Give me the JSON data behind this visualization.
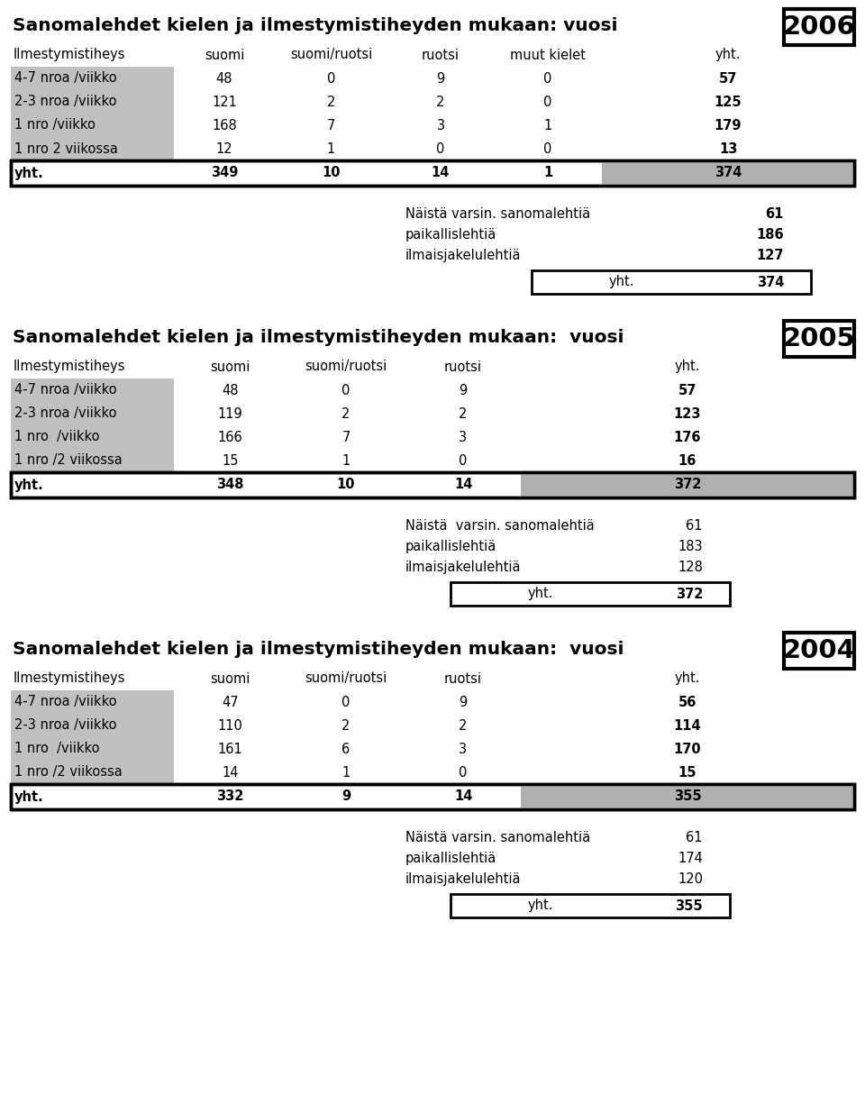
{
  "tables": [
    {
      "year": "2006",
      "title": "Sanomalehdet kielen ja ilmestymistiheyden mukaan: vuosi",
      "header": [
        "Ilmestymistiheys",
        "suomi",
        "suomi/ruotsi",
        "ruotsi",
        "muut kielet",
        "yht."
      ],
      "rows": [
        [
          "4-7 nroa /viikko",
          "48",
          "0",
          "9",
          "0",
          "57"
        ],
        [
          "2-3 nroa /viikko",
          "121",
          "2",
          "2",
          "0",
          "125"
        ],
        [
          "1 nro /viikko",
          "168",
          "7",
          "3",
          "1",
          "179"
        ],
        [
          "1 nro 2 viikossa",
          "12",
          "1",
          "0",
          "0",
          "13"
        ]
      ],
      "total_row": [
        "yht.",
        "349",
        "10",
        "14",
        "1",
        "374"
      ],
      "summary": [
        [
          "Näistä varsin. sanomalehtiä",
          "61"
        ],
        [
          "paikallislehtiä",
          "186"
        ],
        [
          "ilmaisjakelulehtiä",
          "127"
        ]
      ],
      "summary_total": [
        "yht.",
        "374"
      ],
      "has_muut_kielet": true
    },
    {
      "year": "2005",
      "title": "Sanomalehdet kielen ja ilmestymistiheyden mukaan:  vuosi",
      "header": [
        "Ilmestymistiheys",
        "suomi",
        "suomi/ruotsi",
        "ruotsi",
        "yht."
      ],
      "rows": [
        [
          "4-7 nroa /viikko",
          "48",
          "0",
          "9",
          "57"
        ],
        [
          "2-3 nroa /viikko",
          "119",
          "2",
          "2",
          "123"
        ],
        [
          "1 nro  /viikko",
          "166",
          "7",
          "3",
          "176"
        ],
        [
          "1 nro /2 viikossa",
          "15",
          "1",
          "0",
          "16"
        ]
      ],
      "total_row": [
        "yht.",
        "348",
        "10",
        "14",
        "372"
      ],
      "summary": [
        [
          "Näistä  varsin. sanomalehtiä",
          "61"
        ],
        [
          "paikallislehtiä",
          "183"
        ],
        [
          "ilmaisjakelulehtiä",
          "128"
        ]
      ],
      "summary_total": [
        "yht.",
        "372"
      ],
      "has_muut_kielet": false
    },
    {
      "year": "2004",
      "title": "Sanomalehdet kielen ja ilmestymistiheyden mukaan:  vuosi",
      "header": [
        "Ilmestymistiheys",
        "suomi",
        "suomi/ruotsi",
        "ruotsi",
        "yht."
      ],
      "rows": [
        [
          "4-7 nroa /viikko",
          "47",
          "0",
          "9",
          "56"
        ],
        [
          "2-3 nroa /viikko",
          "110",
          "2",
          "2",
          "114"
        ],
        [
          "1 nro  /viikko",
          "161",
          "6",
          "3",
          "170"
        ],
        [
          "1 nro /2 viikossa",
          "14",
          "1",
          "0",
          "15"
        ]
      ],
      "total_row": [
        "yht.",
        "332",
        "9",
        "14",
        "355"
      ],
      "summary": [
        [
          "Näistä varsin. sanomalehtiä",
          "61"
        ],
        [
          "paikallislehtiä",
          "174"
        ],
        [
          "ilmaisjakelulehtiä",
          "120"
        ]
      ],
      "summary_total": [
        "yht.",
        "355"
      ],
      "has_muut_kielet": false
    }
  ],
  "bg_color": "#ffffff",
  "row_label_bg": "#c0c0c0",
  "total_yht_bg": "#b0b0b0",
  "font_size_title": 14.5,
  "font_size_header": 10.5,
  "font_size_data": 10.5,
  "font_size_year": 21,
  "font_size_summary": 10.5
}
